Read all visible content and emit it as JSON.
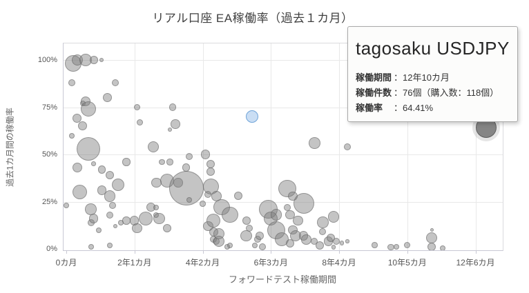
{
  "page_title": "リアル口座 EA稼働率（過去１カ月）",
  "chart_data": {
    "type": "scatter",
    "subtype": "bubble",
    "title": "リアル口座 EA稼働率（過去１カ月）",
    "xlabel": "フォワードテスト稼働期間",
    "ylabel": "過去1カ月間の稼働率",
    "x_unit": "months",
    "y_unit": "percent",
    "xlim": [
      0,
      160
    ],
    "ylim": [
      0,
      109
    ],
    "grid": true,
    "legend": "none",
    "x_ticks": [
      {
        "value": 0,
        "label": "0カ月"
      },
      {
        "value": 25,
        "label": "2年1カ月"
      },
      {
        "value": 50,
        "label": "4年2カ月"
      },
      {
        "value": 75,
        "label": "6年3カ月"
      },
      {
        "value": 100,
        "label": "8年4カ月"
      },
      {
        "value": 125,
        "label": "10年5カ月"
      },
      {
        "value": 150,
        "label": "12年6カ月"
      }
    ],
    "y_ticks": [
      {
        "value": 0,
        "label": "0%"
      },
      {
        "value": 25,
        "label": "25%"
      },
      {
        "value": 50,
        "label": "50%"
      },
      {
        "value": 75,
        "label": "75%"
      },
      {
        "value": 100,
        "label": "100%"
      }
    ],
    "points_format": "[forward_test_months, operation_rate_percent, bubble_radius_px]",
    "points": [
      [
        0,
        23,
        4
      ],
      [
        2,
        88,
        5
      ],
      [
        2,
        60,
        4
      ],
      [
        2.5,
        98,
        12
      ],
      [
        4,
        100,
        8
      ],
      [
        4,
        69,
        6.5
      ],
      [
        4,
        43,
        7.3
      ],
      [
        5,
        30,
        10.7
      ],
      [
        6,
        77,
        4
      ],
      [
        6,
        65,
        6.5
      ],
      [
        7,
        100,
        9
      ],
      [
        7,
        78,
        7
      ],
      [
        8,
        74,
        11
      ],
      [
        8,
        53,
        17
      ],
      [
        9,
        21,
        8.3
      ],
      [
        9,
        14,
        5
      ],
      [
        9,
        1,
        4
      ],
      [
        10,
        100,
        6
      ],
      [
        10,
        45,
        3.3
      ],
      [
        10,
        16,
        6.7
      ],
      [
        12,
        10,
        4
      ],
      [
        13,
        100,
        3
      ],
      [
        13,
        42,
        5.7
      ],
      [
        13,
        31,
        6.7
      ],
      [
        15,
        80,
        6.5
      ],
      [
        16,
        39,
        6
      ],
      [
        16,
        28,
        8.3
      ],
      [
        16,
        18,
        5
      ],
      [
        16,
        2,
        4
      ],
      [
        17,
        23,
        5
      ],
      [
        18,
        88,
        5
      ],
      [
        18,
        12,
        3.3
      ],
      [
        19,
        34,
        9.3
      ],
      [
        20,
        14,
        4
      ],
      [
        22,
        46,
        5.7
      ],
      [
        22,
        15,
        5.7
      ],
      [
        25,
        15,
        6.7
      ],
      [
        26,
        75,
        4.7
      ],
      [
        26,
        11,
        7.3
      ],
      [
        27,
        67,
        4.7
      ],
      [
        29,
        16,
        10
      ],
      [
        31,
        22,
        6.7
      ],
      [
        32,
        54,
        8
      ],
      [
        33,
        35,
        7.3
      ],
      [
        33,
        22,
        4
      ],
      [
        33,
        18,
        4
      ],
      [
        34,
        16,
        8.3
      ],
      [
        35,
        46,
        4.3
      ],
      [
        37,
        36,
        10
      ],
      [
        37,
        11,
        6
      ],
      [
        38,
        63,
        3
      ],
      [
        38,
        46,
        4.7
      ],
      [
        39,
        75,
        5.3
      ],
      [
        40,
        66,
        6.7
      ],
      [
        41,
        35,
        6.7
      ],
      [
        44,
        43,
        5.7
      ],
      [
        44,
        32,
        25
      ],
      [
        45,
        49,
        5
      ],
      [
        45,
        26,
        4
      ],
      [
        50,
        24,
        4.3
      ],
      [
        51,
        50,
        6.7
      ],
      [
        52,
        29,
        5
      ],
      [
        52,
        12,
        7.3
      ],
      [
        53,
        45,
        6
      ],
      [
        53,
        41,
        6
      ],
      [
        53,
        33,
        11.7
      ],
      [
        54,
        15,
        10
      ],
      [
        54,
        9,
        6.7
      ],
      [
        54,
        5,
        5
      ],
      [
        55,
        28,
        7.3
      ],
      [
        55,
        4,
        5
      ],
      [
        56,
        8,
        8.3
      ],
      [
        56,
        4,
        8.3
      ],
      [
        57,
        22,
        11.7
      ],
      [
        59,
        1,
        4
      ],
      [
        60,
        18,
        11.7
      ],
      [
        60,
        2,
        4
      ],
      [
        63,
        28,
        6
      ],
      [
        66,
        15,
        6
      ],
      [
        66,
        7,
        8.3
      ],
      [
        67,
        11,
        5
      ],
      [
        69,
        2,
        4
      ],
      [
        70,
        5,
        5
      ],
      [
        71,
        7,
        6
      ],
      [
        72,
        1,
        5
      ],
      [
        74,
        21,
        13.3
      ],
      [
        75,
        16,
        10
      ],
      [
        77,
        18,
        8.3
      ],
      [
        77,
        10,
        13
      ],
      [
        79,
        5,
        10
      ],
      [
        81,
        32,
        12.7
      ],
      [
        81,
        22,
        5
      ],
      [
        82,
        18,
        6.7
      ],
      [
        82,
        3,
        6
      ],
      [
        83,
        28,
        6.7
      ],
      [
        83,
        10,
        6.7
      ],
      [
        84,
        7,
        8.3
      ],
      [
        85,
        15,
        7.3
      ],
      [
        87,
        24,
        15
      ],
      [
        87,
        7,
        6.7
      ],
      [
        88,
        5,
        7.3
      ],
      [
        91,
        56,
        8.3
      ],
      [
        91,
        4,
        5
      ],
      [
        93,
        2,
        6
      ],
      [
        94,
        14,
        8.3
      ],
      [
        94,
        9,
        5
      ],
      [
        96,
        4,
        6.7
      ],
      [
        97,
        6,
        6
      ],
      [
        98,
        17,
        8.3
      ],
      [
        98,
        1,
        3.3
      ],
      [
        99,
        4,
        5
      ],
      [
        101,
        3,
        3.3
      ],
      [
        103,
        54,
        5
      ],
      [
        103,
        4,
        2.7
      ],
      [
        113,
        2,
        4.3
      ],
      [
        119,
        1,
        4.7
      ],
      [
        121,
        1,
        4
      ],
      [
        125,
        2,
        4.7
      ],
      [
        134,
        10,
        2.7
      ],
      [
        134,
        6,
        8
      ],
      [
        134,
        1,
        6
      ],
      [
        138,
        0.5,
        4
      ]
    ],
    "selected_point": {
      "x": 68,
      "y": 70,
      "r": 9
    },
    "hovered_point": {
      "x": 154,
      "y": 64.41,
      "r": 15,
      "name": "tagosaku USDJPY"
    }
  },
  "tooltip": {
    "title": "tagosaku USDJPY",
    "rows": [
      {
        "label": "稼働期間",
        "value": "：12年10カ月"
      },
      {
        "label": "稼働件数",
        "value": "：76個（購入数：118個）"
      },
      {
        "label": "稼働率",
        "value": "：64.41%"
      }
    ]
  },
  "colors": {
    "bubble_fill": "rgba(125,125,125,0.45)",
    "bubble_stroke": "rgba(95,95,95,0.5)",
    "selected_fill": "#cadef4",
    "selected_stroke": "#6fa3d8",
    "hovered_fill": "rgba(112,112,112,0.85)",
    "grid": "#e8e8e8",
    "axis": "#c8c8d4",
    "tick_text": "#555555",
    "axis_title_text": "#666666",
    "chart_title_text": "#3f3f3f"
  }
}
